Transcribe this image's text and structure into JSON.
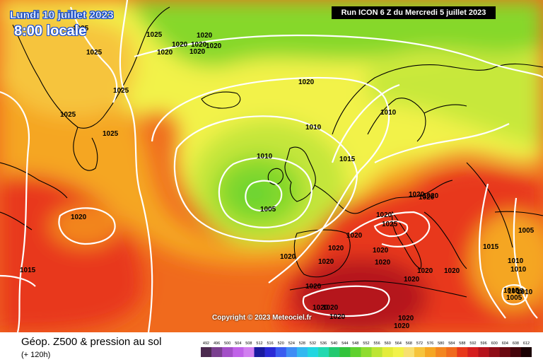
{
  "header": {
    "date_label": "Lundi 10 juillet 2023",
    "time_label": "8:00 locale",
    "run_label": "Run ICON 6 Z du Mercredi 5 juillet 2023"
  },
  "copyright": "Copyright © 2023 Meteociel.fr",
  "footer": {
    "title": "Géop. Z500 & pression au sol",
    "subtitle": "(+ 120h)"
  },
  "colors": {
    "ocean_mid_green": "#86d82a",
    "low_center_green": "#66d433",
    "yellow": "#f2f24a",
    "light_yellow": "#f8ee7a",
    "orange": "#f5a623",
    "red_orange": "#f06a1d",
    "red": "#e8381a",
    "dark_red": "#b5121b",
    "isobar": "#ffffff",
    "coast": "#000000"
  },
  "isobar_labels": [
    "1025",
    "1025",
    "1020",
    "1020",
    "1020",
    "1025",
    "1020",
    "1025",
    "1025",
    "1025",
    "1020",
    "1010",
    "1010",
    "1010",
    "1015",
    "1005",
    "1020",
    "1020",
    "1015",
    "1020",
    "1020",
    "1020",
    "1025",
    "1020",
    "1020",
    "1020",
    "1020",
    "1020",
    "1020",
    "1020",
    "1020",
    "1020",
    "1020",
    "1020",
    "1020",
    "1020",
    "1015",
    "1005",
    "1010",
    "1010",
    "1005",
    "1005",
    "1015",
    "1010",
    "1020",
    "1020",
    "1020",
    "1020"
  ],
  "scale": {
    "values": [
      "492",
      "496",
      "500",
      "504",
      "508",
      "512",
      "516",
      "520",
      "524",
      "528",
      "532",
      "536",
      "540",
      "544",
      "548",
      "552",
      "556",
      "560",
      "564",
      "568",
      "572",
      "576",
      "580",
      "584",
      "588",
      "592",
      "596",
      "600",
      "604",
      "608",
      "612"
    ],
    "colors": [
      "#4b2a4f",
      "#7a3f8f",
      "#a34fc7",
      "#c062e8",
      "#d17ff0",
      "#1a1aa0",
      "#2a2ad6",
      "#3a5cf0",
      "#3f8df5",
      "#33b8f0",
      "#22d6e0",
      "#22d9b0",
      "#22c970",
      "#33c33b",
      "#5fd12e",
      "#8fdc2e",
      "#bde533",
      "#e4ec3a",
      "#f2f24a",
      "#f8e070",
      "#f6c43c",
      "#f5a623",
      "#f3861f",
      "#f06a1d",
      "#e8381a",
      "#d51e1e",
      "#b5121b",
      "#8e0c16",
      "#6a0810",
      "#45040a",
      "#1a0002"
    ]
  }
}
